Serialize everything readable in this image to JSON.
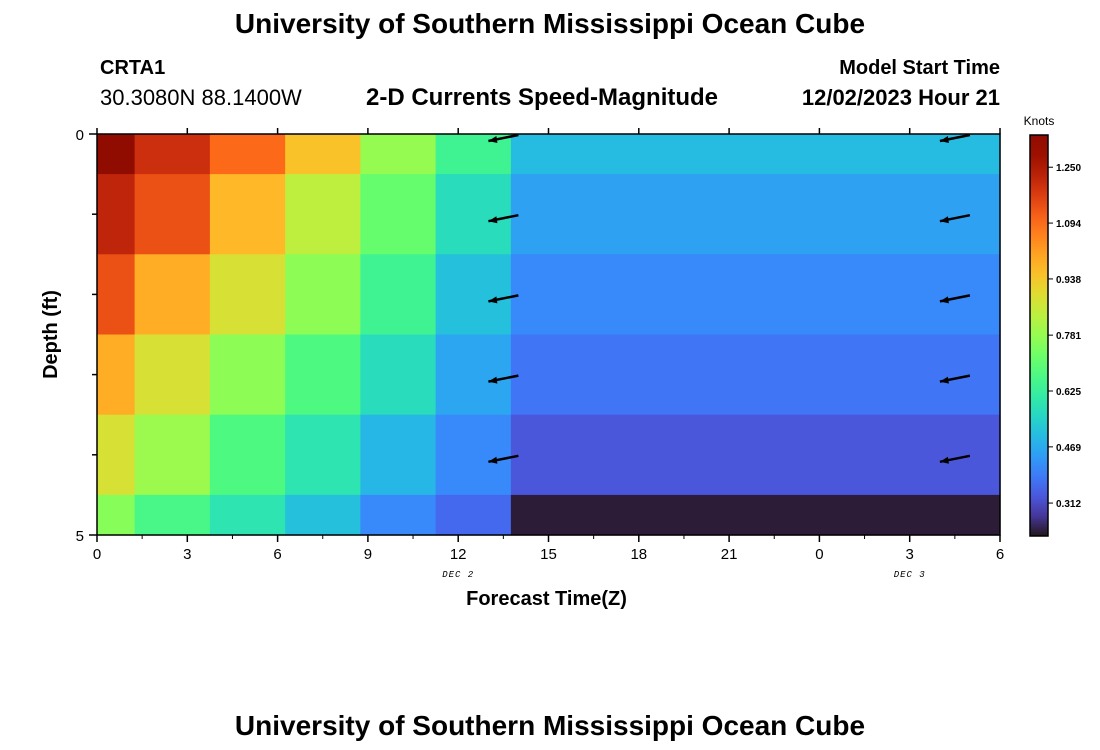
{
  "header": {
    "title": "University of Southern Mississippi Ocean Cube",
    "station_id": "CRTA1",
    "station_coords": "30.3080N  88.1400W",
    "plot_name": "2-D Currents Speed-Magnitude",
    "model_start_label": "Model Start Time",
    "model_start_value": "12/02/2023 Hour 21"
  },
  "footer": {
    "title": "University of Southern Mississippi Ocean Cube"
  },
  "chart_data": {
    "type": "heatmap",
    "xlabel": "Forecast Time(Z)",
    "ylabel": "Depth (ft)",
    "x_ticks": [
      "0",
      "3",
      "6",
      "9",
      "12",
      "15",
      "18",
      "21",
      "0",
      "3",
      "6"
    ],
    "x_tick_values": [
      0,
      3,
      6,
      9,
      12,
      15,
      18,
      21,
      24,
      27,
      30
    ],
    "date_labels": [
      {
        "label": "DEC 2",
        "x": 12
      },
      {
        "label": "DEC 3",
        "x": 27
      }
    ],
    "y_ticks": [
      "0",
      "5"
    ],
    "y_tick_values": [
      0,
      5
    ],
    "xlim": [
      0,
      30
    ],
    "ylim": [
      0,
      5
    ],
    "y_inverted": true,
    "colorbar": {
      "label": "Knots",
      "ticks": [
        "1.250",
        "1.094",
        "0.938",
        "0.781",
        "0.625",
        "0.469",
        "0.312"
      ],
      "tick_values": [
        1.25,
        1.094,
        0.938,
        0.781,
        0.625,
        0.469,
        0.312
      ],
      "range": [
        0.22,
        1.34
      ],
      "colormap": "turbo"
    },
    "depth_bins": [
      0.5,
      1.5,
      2.5,
      3.5,
      4.5,
      5.0
    ],
    "time_bins": [
      {
        "from": 0,
        "to": 1.25
      },
      {
        "from": 1.25,
        "to": 3.75
      },
      {
        "from": 3.75,
        "to": 6.25
      },
      {
        "from": 6.25,
        "to": 8.75
      },
      {
        "from": 8.75,
        "to": 11.25
      },
      {
        "from": 11.25,
        "to": 13.75
      },
      {
        "from": 13.75,
        "to": 30
      }
    ],
    "values": [
      [
        1.34,
        1.2,
        1.1,
        0.95,
        0.78,
        0.64,
        0.5
      ],
      [
        1.22,
        1.14,
        0.97,
        0.84,
        0.71,
        0.57,
        0.45
      ],
      [
        1.14,
        0.99,
        0.88,
        0.77,
        0.64,
        0.51,
        0.41
      ],
      [
        0.99,
        0.88,
        0.77,
        0.67,
        0.57,
        0.46,
        0.38
      ],
      [
        0.88,
        0.79,
        0.67,
        0.59,
        0.49,
        0.41,
        0.33
      ],
      [
        0.76,
        0.66,
        0.59,
        0.51,
        0.41,
        0.36,
        0.23
      ]
    ],
    "vectors": [
      {
        "x": 14,
        "depth": 0.0
      },
      {
        "x": 14,
        "depth": 1.0
      },
      {
        "x": 14,
        "depth": 2.0
      },
      {
        "x": 14,
        "depth": 3.0
      },
      {
        "x": 14,
        "depth": 4.0
      },
      {
        "x": 29,
        "depth": 0.0
      },
      {
        "x": 29,
        "depth": 1.0
      },
      {
        "x": 29,
        "depth": 2.0
      },
      {
        "x": 29,
        "depth": 3.0
      },
      {
        "x": 29,
        "depth": 4.0
      }
    ]
  }
}
